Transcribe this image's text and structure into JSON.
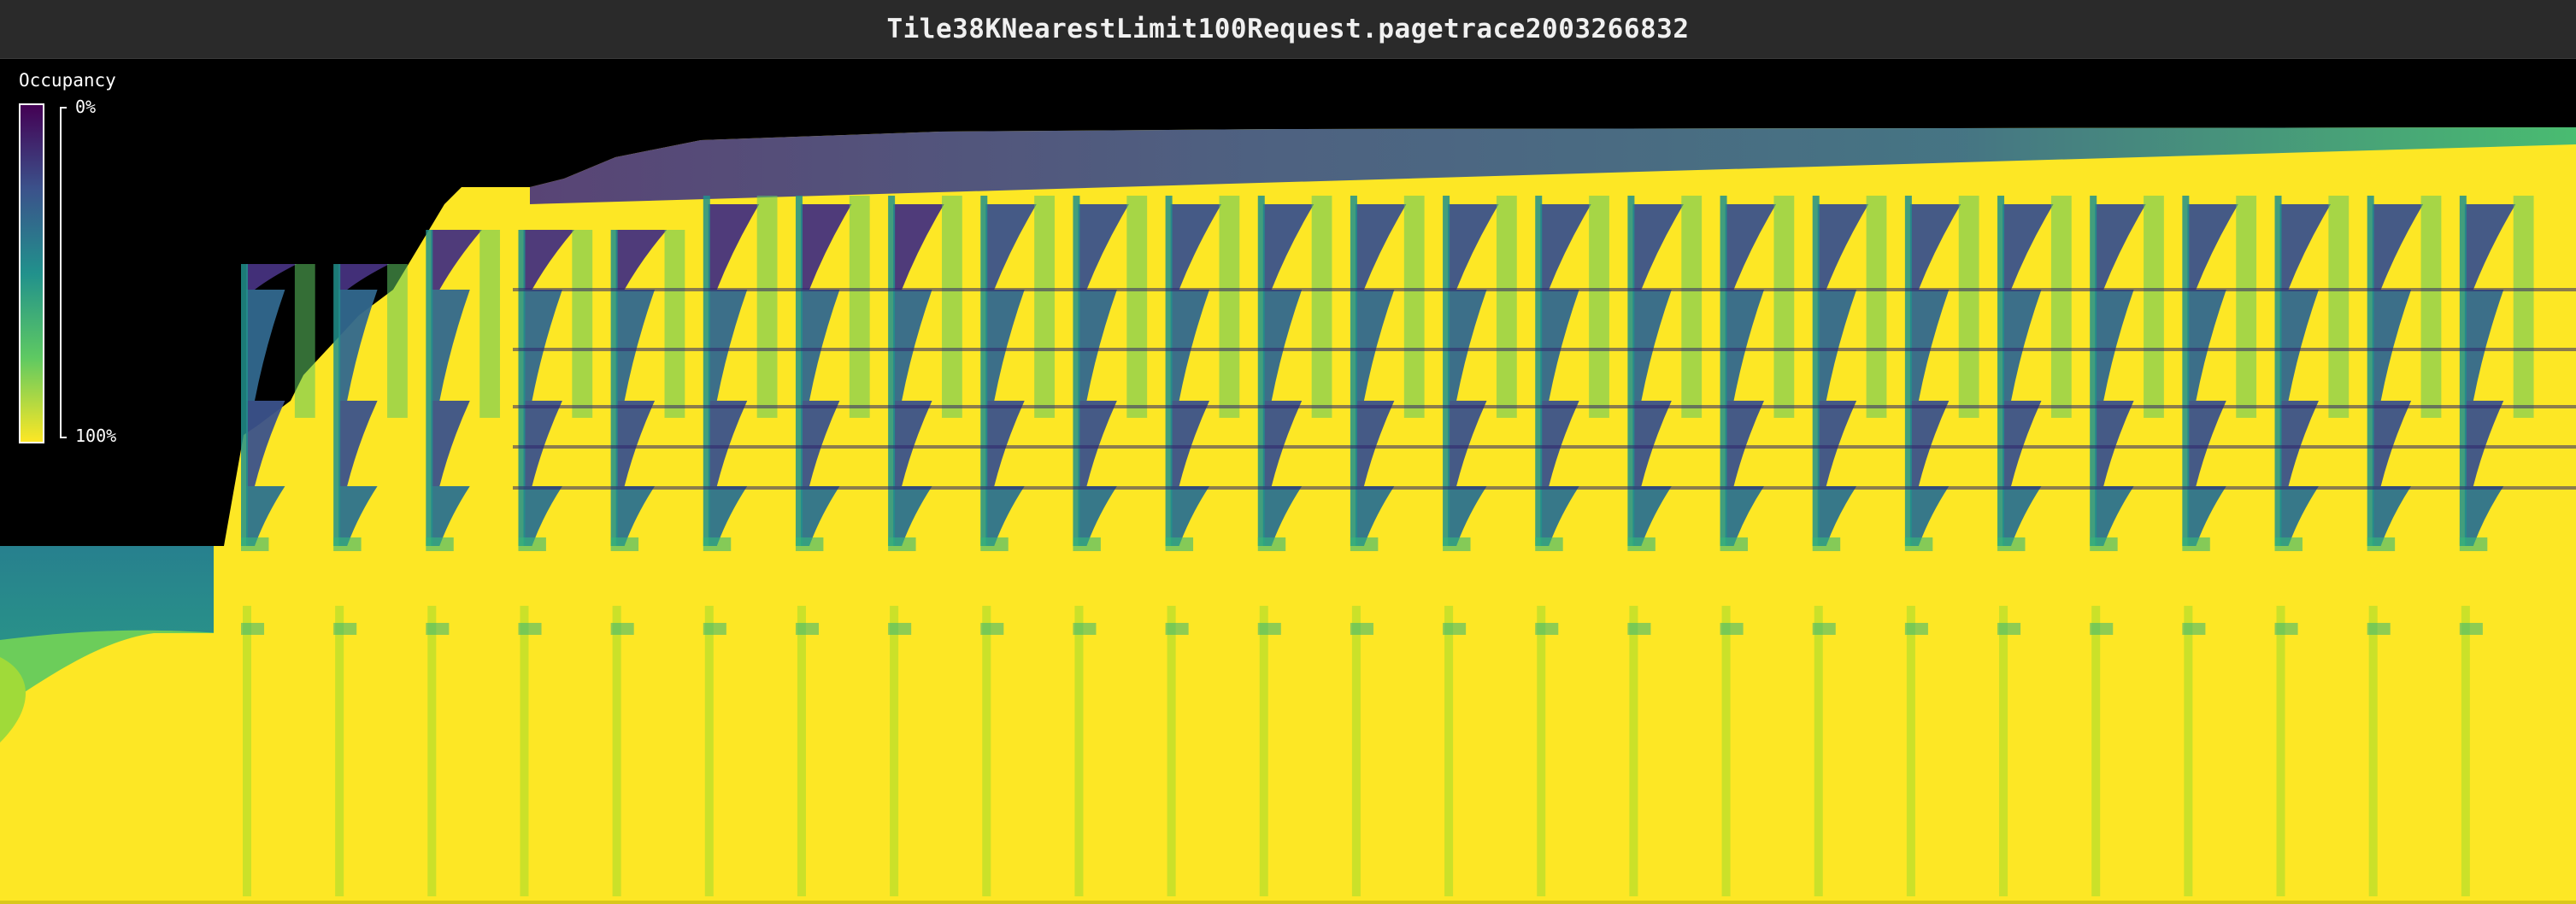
{
  "window": {
    "title": "Tile38KNearestLimit100Request.pagetrace2003266832"
  },
  "legend": {
    "title": "Occupancy",
    "tick_top": "0%",
    "tick_bottom": "100%"
  },
  "colors": {
    "titlebar_bg": "#2a2a2a",
    "plot_bg": "#000000",
    "scale_0": "#440154",
    "scale_25": "#3b528b",
    "scale_50": "#21918c",
    "scale_75": "#5ec962",
    "scale_100": "#fde725"
  },
  "heatmap": {
    "cycles": 25,
    "colormap": "viridis"
  }
}
